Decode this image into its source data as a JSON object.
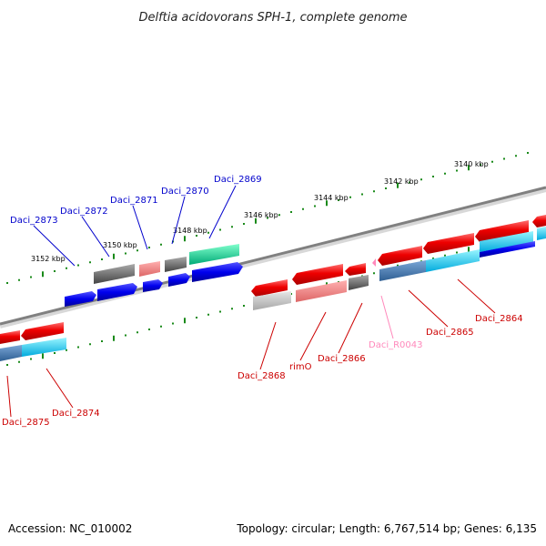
{
  "title": "Delftia acidovorans SPH-1, complete genome",
  "footer": {
    "accession": "Accession: NC_010002",
    "topology": "Topology: circular; Length: 6,767,514 bp; Genes: 6,135"
  },
  "colors": {
    "backbone": "#808080",
    "ticks": "#1a8a1a",
    "upper_label": "#0000cc",
    "lower_label": "#cc0000",
    "rna_label": "#ff88bb"
  },
  "scale_labels": [
    "3152 kbp",
    "3150 kbp",
    "3148 kbp",
    "3146 kbp",
    "3144 kbp",
    "3142 kbp",
    "3140 kbp"
  ],
  "genes_upper": [
    {
      "label": "Daci_2873",
      "color": "#0000cc"
    },
    {
      "label": "Daci_2872",
      "color": "#0000cc"
    },
    {
      "label": "Daci_2871",
      "color": "#0000cc"
    },
    {
      "label": "Daci_2870",
      "color": "#0000cc"
    },
    {
      "label": "Daci_2869",
      "color": "#0000cc"
    }
  ],
  "genes_lower": [
    {
      "label": "Daci_2875",
      "color": "#cc0000"
    },
    {
      "label": "Daci_2874",
      "color": "#cc0000"
    },
    {
      "label": "Daci_2868",
      "color": "#cc0000"
    },
    {
      "label": "rimO",
      "color": "#cc0000"
    },
    {
      "label": "Daci_2866",
      "color": "#cc0000"
    },
    {
      "label": "Daci_R0043",
      "color": "#ff88bb"
    },
    {
      "label": "Daci_2865",
      "color": "#cc0000"
    },
    {
      "label": "Daci_2864",
      "color": "#cc0000"
    }
  ]
}
